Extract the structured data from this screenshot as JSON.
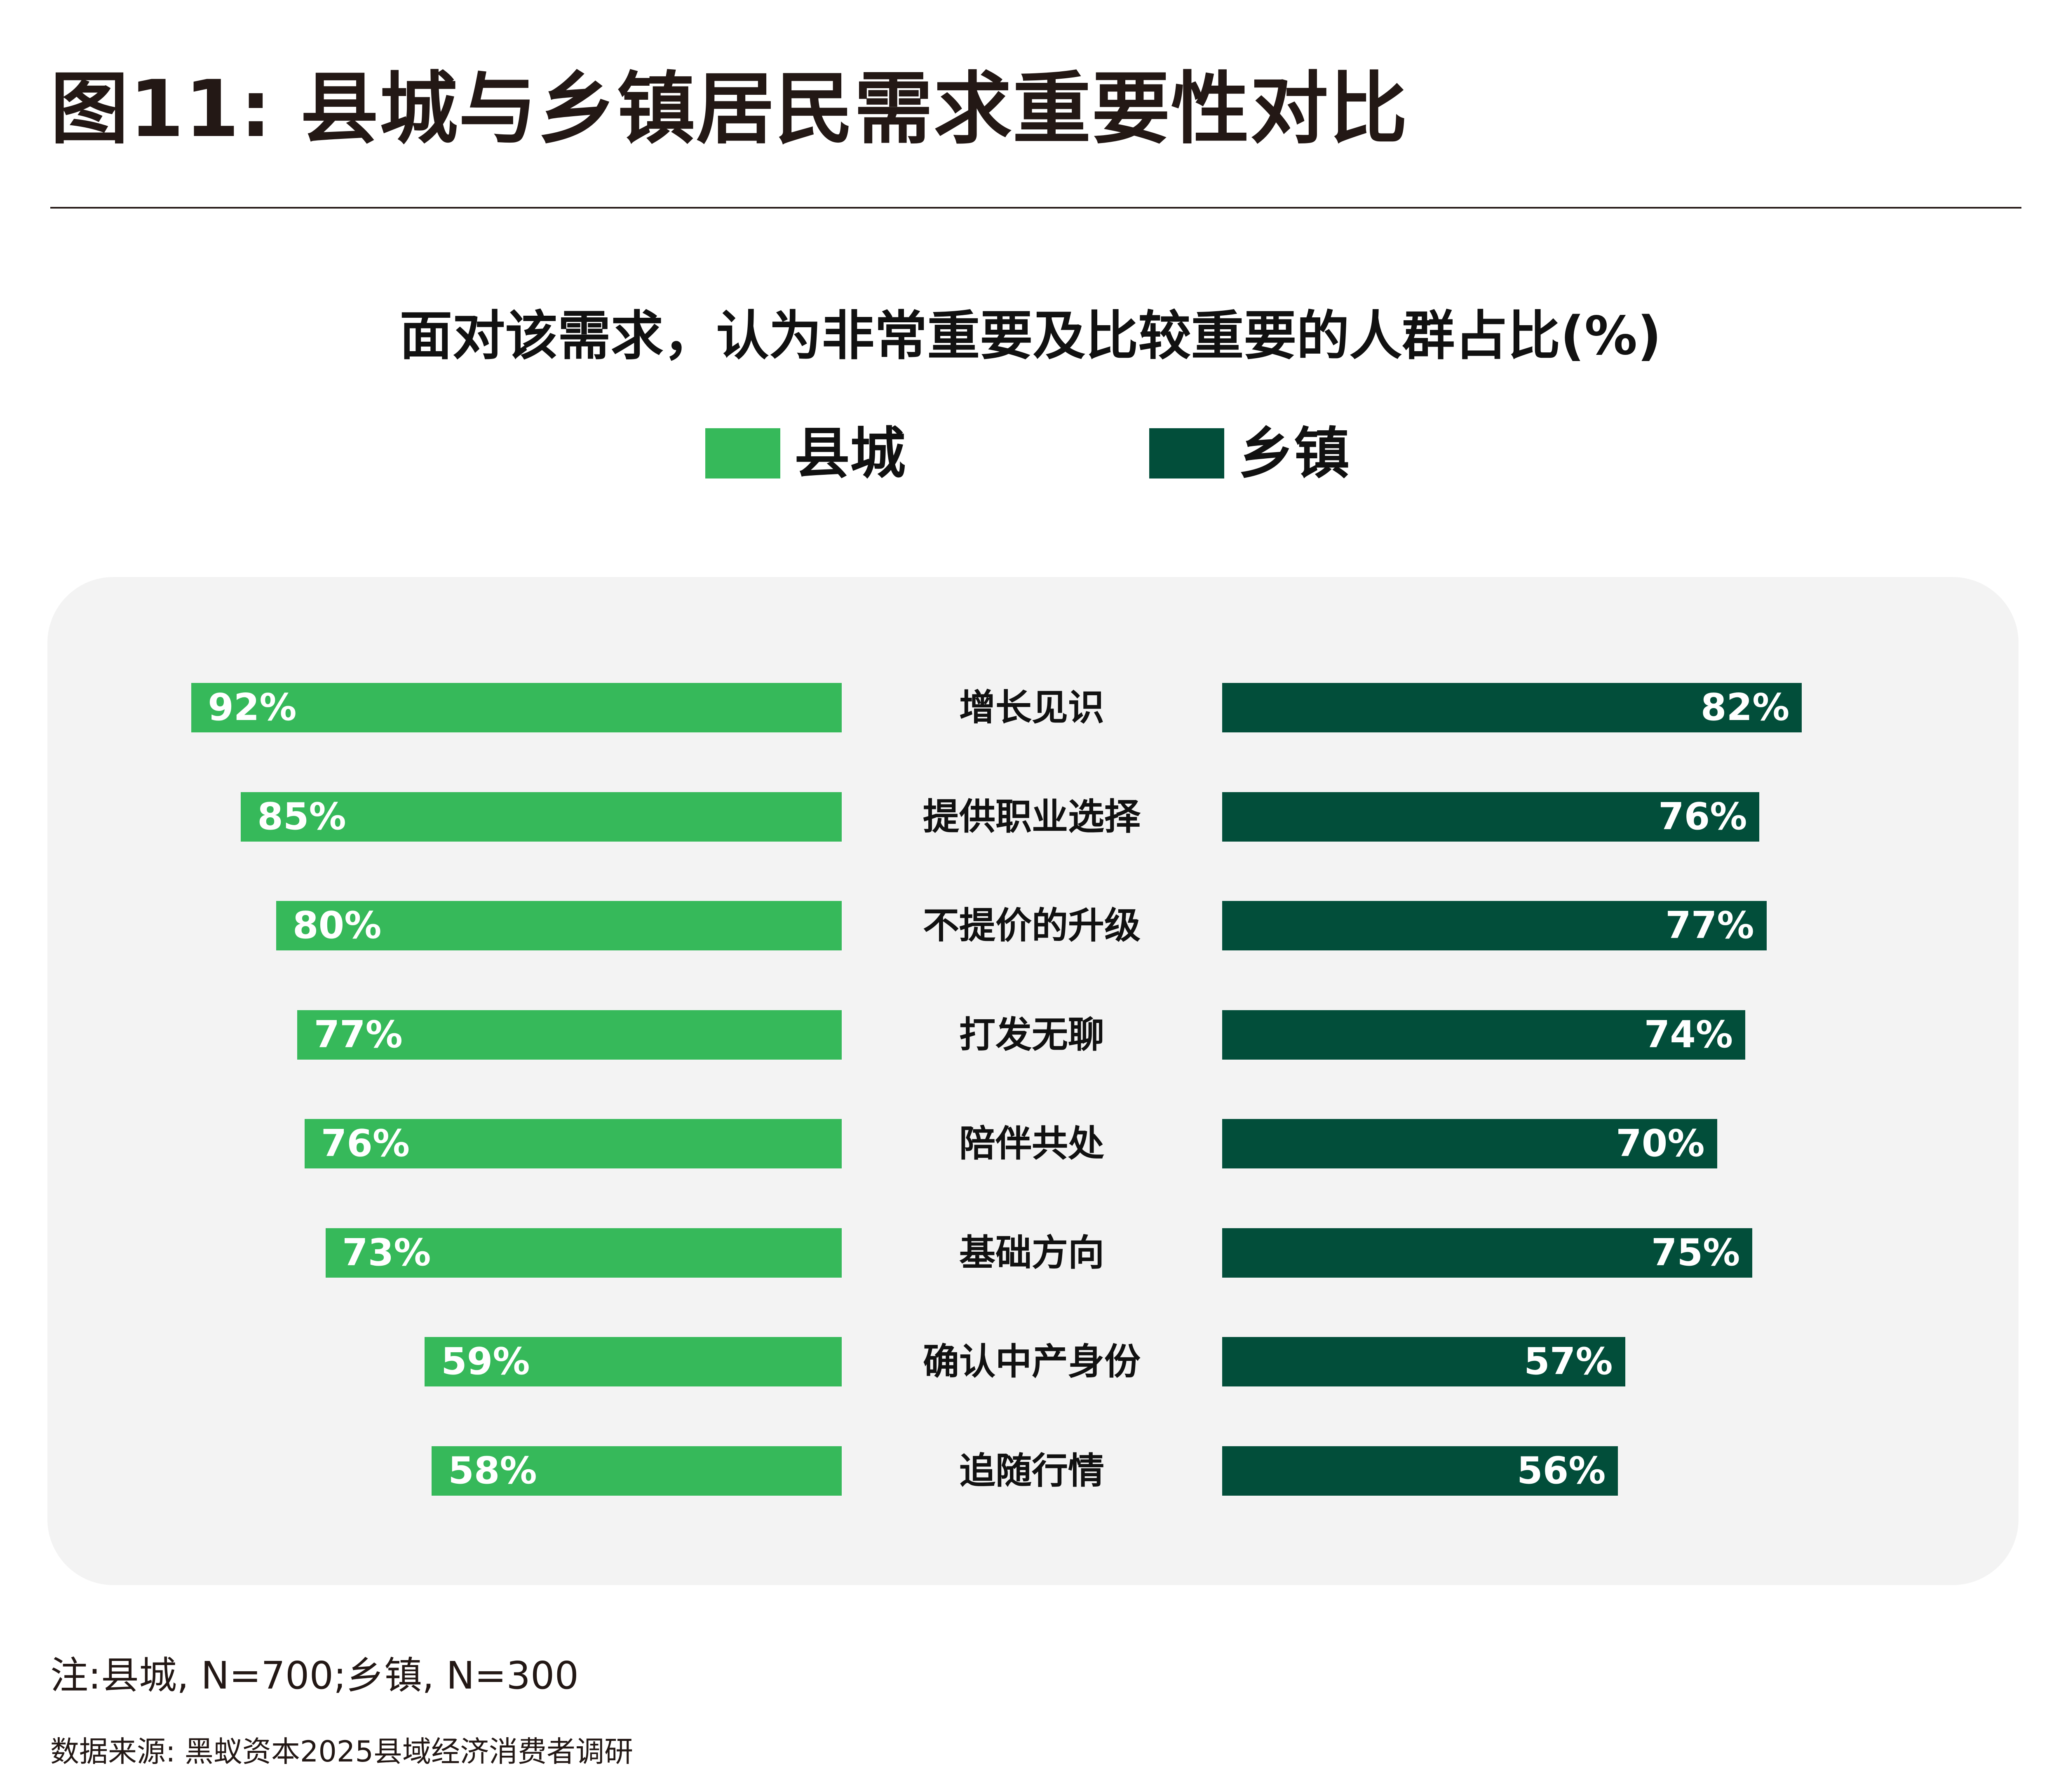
{
  "title": "图11: 县城与乡镇居民需求重要性对比",
  "chart_data": {
    "type": "bar",
    "orientation": "horizontal-butterfly",
    "title": "面对该需求，认为非常重要及比较重要的人群占比(%)",
    "categories": [
      "增长见识",
      "提供职业选择",
      "不提价的升级",
      "打发无聊",
      "陪伴共处",
      "基础方向",
      "确认中产身份",
      "追随行情"
    ],
    "series": [
      {
        "name": "县城",
        "color": "#36b95a",
        "values": [
          92,
          85,
          80,
          77,
          76,
          73,
          59,
          58
        ]
      },
      {
        "name": "乡镇",
        "color": "#024e3a",
        "values": [
          82,
          76,
          77,
          74,
          70,
          75,
          57,
          56
        ]
      }
    ],
    "value_suffix": "%",
    "legend_position": "top",
    "grid": false
  },
  "note": "注:县城, N=700;乡镇, N=300",
  "source": "数据来源: 黑蚁资本2025县域经济消费者调研"
}
